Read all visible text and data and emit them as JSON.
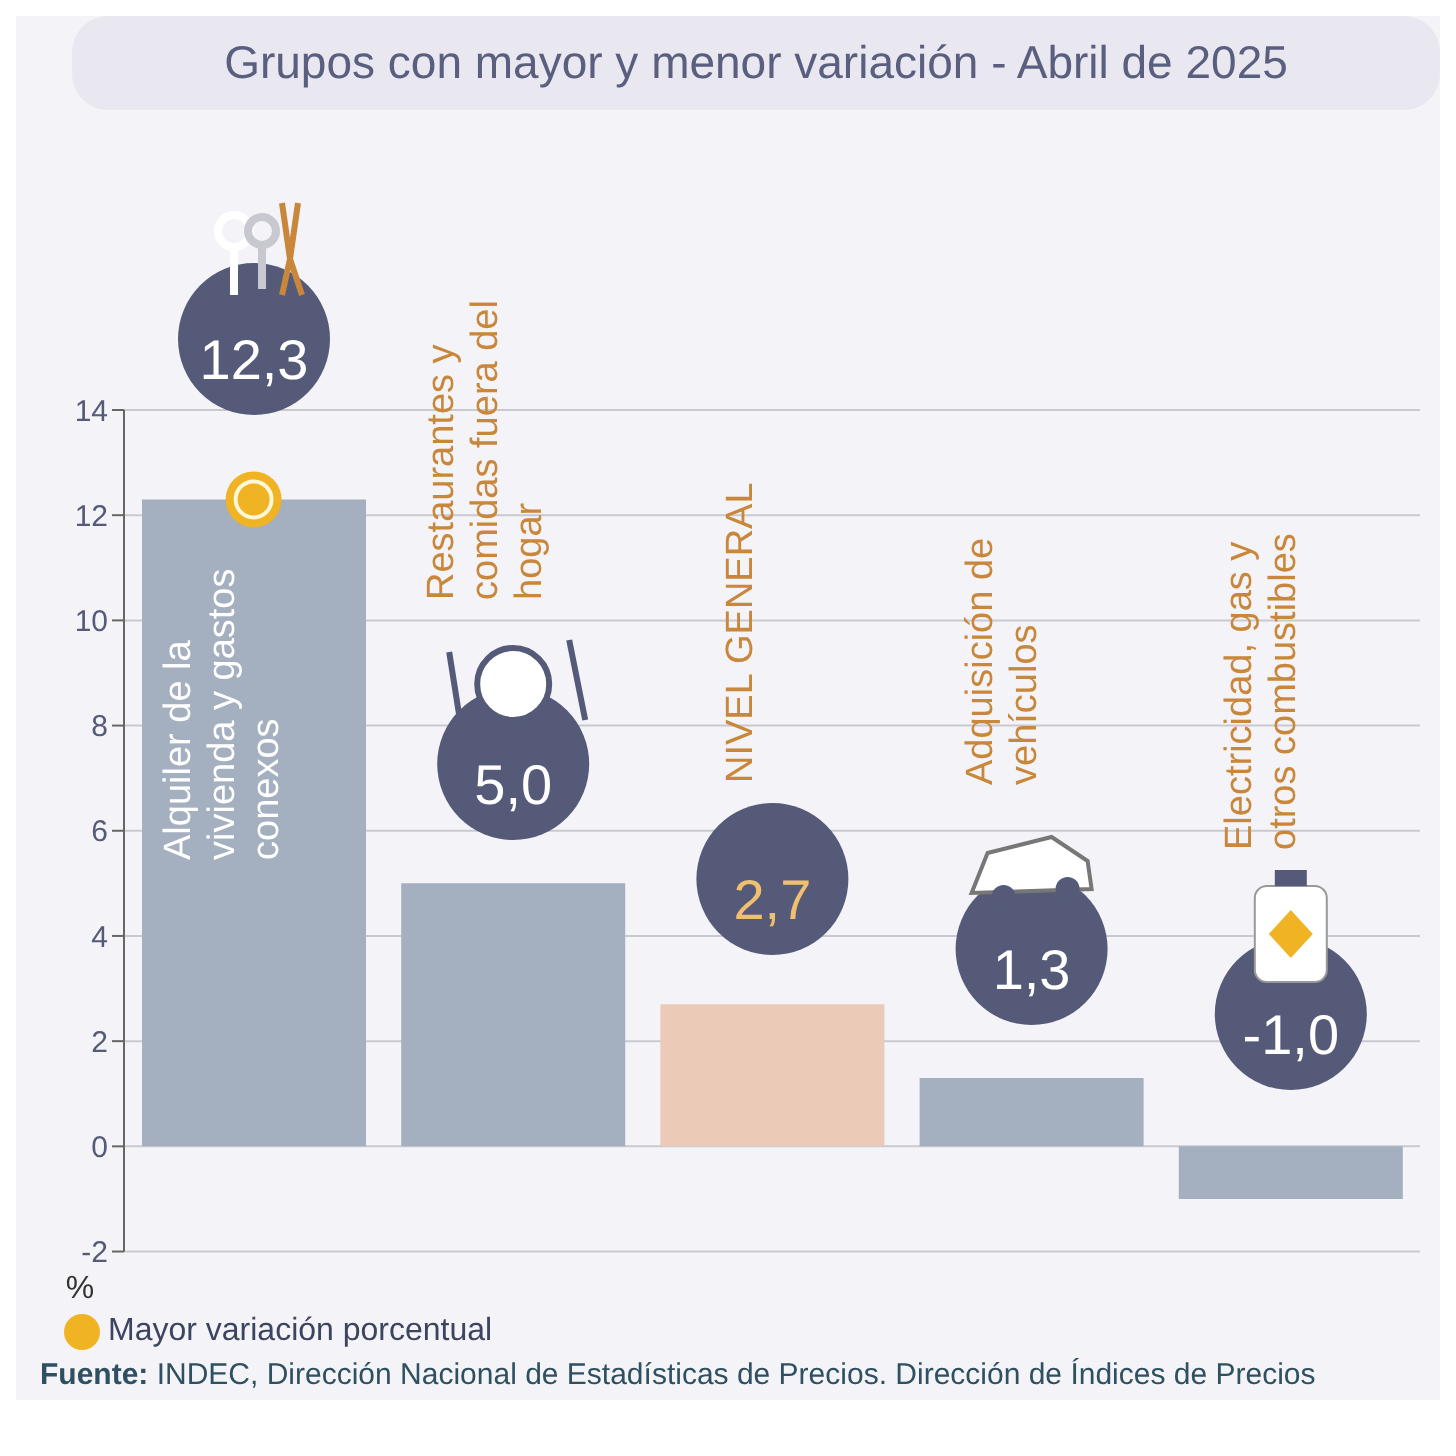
{
  "chart_data": {
    "type": "bar",
    "title": "Grupos con mayor y menor variación - Abril de 2025",
    "ylabel": "%",
    "categories": [
      "Alquiler de la vivienda y gastos conexos",
      "Restaurantes y comidas fuera del hogar",
      "NIVEL GENERAL",
      "Adquisición de vehículos",
      "Electricidad, gas y otros combustibles"
    ],
    "series": [
      {
        "colors": [
          "#a4afbf",
          "#a4afbf",
          "#ebcab8",
          "#a4afbf",
          "#a4afbf"
        ],
        "values": [
          12.3,
          5.0,
          2.7,
          1.3,
          -1.0
        ],
        "value_labels": [
          "12,3",
          "5,0",
          "2,7",
          "1,3",
          "-1,0"
        ]
      },
      {
        "type": "scatter",
        "name": "Mayor variación porcentual",
        "color": "#f0b323",
        "values": [
          12.3,
          null,
          null,
          null,
          null
        ]
      }
    ],
    "ylim": [
      -2,
      14
    ],
    "yticks": [
      -2,
      0,
      2,
      4,
      6,
      8,
      10,
      12,
      14
    ],
    "grid": "y",
    "legend": "bottom left",
    "tick_labels": "y",
    "annotations": [
      "Fuente: INDEC, Dirección Nacional de Estadísticas de Precios. Dirección de Índices de Precios"
    ]
  }
}
